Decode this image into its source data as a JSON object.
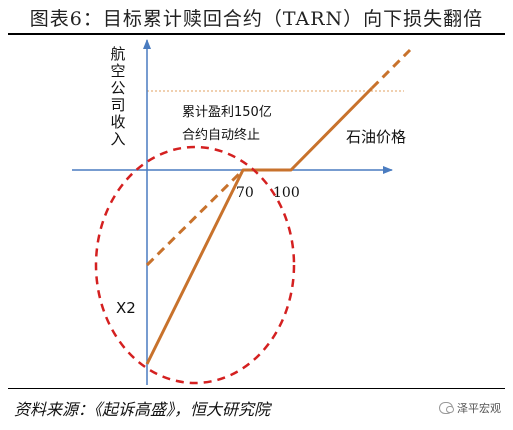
{
  "title": "图表6：目标累计赎回合约（TARN）向下损失翻倍",
  "source": "资料来源：《起诉高盛》，恒大研究院",
  "watermark": "泽平宏观",
  "diagram": {
    "y_axis_label": [
      "航",
      "空",
      "公",
      "司",
      "收",
      "入"
    ],
    "annotation_line1": "累计盈利150亿",
    "annotation_line2": "合约自动终止",
    "curve_label": "石油价格",
    "tick_70": "70",
    "tick_100": "100",
    "x2_label": "X2",
    "colors": {
      "payoff": "#c8722c",
      "circle": "#d42020",
      "axis": "#4a7cc0",
      "cap_line": "#e0a060"
    }
  }
}
